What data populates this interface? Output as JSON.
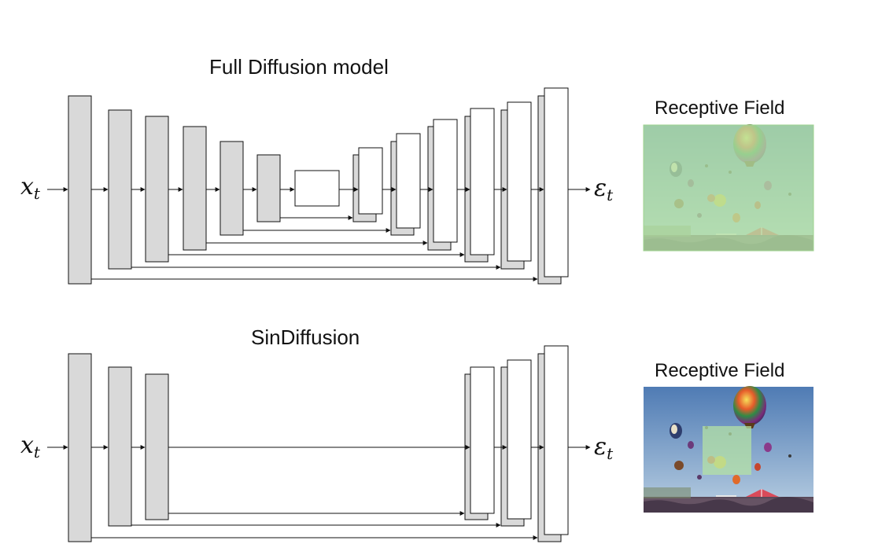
{
  "top_panel": {
    "title": "Full Diffusion model",
    "input_label": {
      "symbol": "x",
      "subscript": "t"
    },
    "output_label": {
      "symbol": "ε",
      "subscript": "t"
    },
    "receptive_field_title": "Receptive Field",
    "receptive_field_coverage": "full image"
  },
  "bottom_panel": {
    "title": "SinDiffusion",
    "input_label": {
      "symbol": "x",
      "subscript": "t"
    },
    "output_label": {
      "symbol": "ε",
      "subscript": "t"
    },
    "receptive_field_title": "Receptive Field",
    "receptive_field_coverage": "local patch"
  },
  "colors": {
    "encoder_block": "#d9d9d9",
    "decoder_block": "#ffffff",
    "stroke": "#111111",
    "receptive_overlay": "#b5e3a4",
    "sky_top": "#4f7bb4",
    "sky_bottom": "#b9cfe2"
  }
}
